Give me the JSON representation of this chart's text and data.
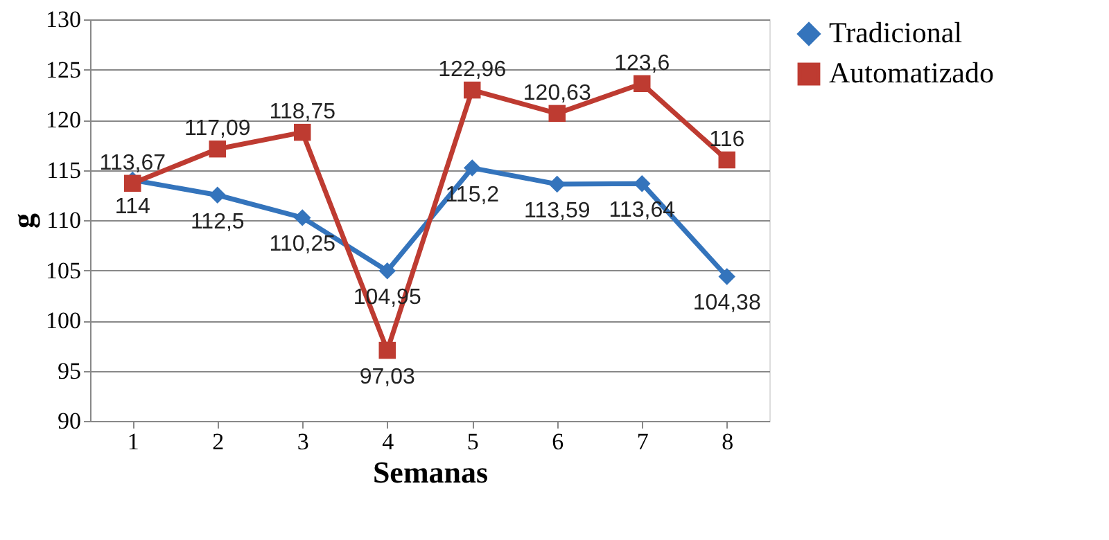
{
  "chart_data": {
    "type": "line",
    "xlabel": "Semanas",
    "ylabel": "g",
    "categories": [
      "1",
      "2",
      "3",
      "4",
      "5",
      "6",
      "7",
      "8"
    ],
    "series": [
      {
        "name": "Tradicional",
        "color": "#3474bc",
        "marker": "diamond",
        "values": [
          114,
          112.5,
          110.25,
          104.95,
          115.2,
          113.59,
          113.64,
          104.38
        ],
        "value_labels": [
          "114",
          "112,5",
          "110,25",
          "104,95",
          "115,2",
          "113,59",
          "113,64",
          "104,38"
        ]
      },
      {
        "name": "Automatizado",
        "color": "#be3b31",
        "marker": "square",
        "values": [
          113.67,
          117.09,
          118.75,
          97.03,
          122.96,
          120.63,
          123.6,
          116
        ],
        "value_labels": [
          "113,67",
          "117,09",
          "118,75",
          "97,03",
          "122,96",
          "120,63",
          "123,6",
          "116"
        ]
      }
    ],
    "ylim": [
      90,
      130
    ],
    "yticks": [
      90,
      95,
      100,
      105,
      110,
      115,
      120,
      125,
      130
    ],
    "grid": "y",
    "legend": "right",
    "line_style": "solid"
  }
}
